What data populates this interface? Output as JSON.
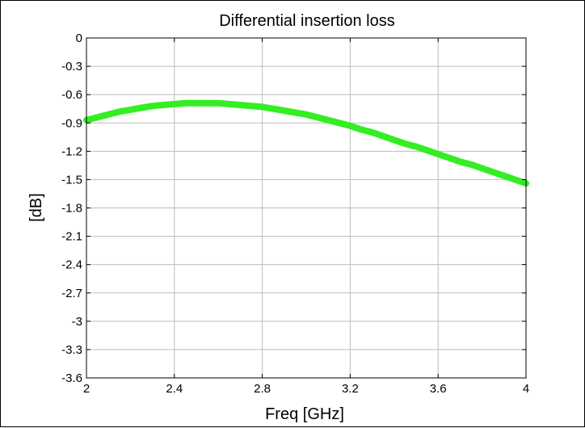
{
  "chart_data": {
    "type": "line",
    "title": "Differential insertion loss",
    "xlabel": "Freq [GHz]",
    "ylabel": "[dB]",
    "xlim": [
      2,
      4
    ],
    "ylim": [
      -3.6,
      0
    ],
    "xticks": [
      2,
      2.4,
      2.8,
      3.2,
      3.6,
      4
    ],
    "xtick_labels": [
      "2",
      "2.4",
      "2.8",
      "3.2",
      "3.6",
      "4"
    ],
    "yticks": [
      0,
      -0.3,
      -0.6,
      -0.9,
      -1.2,
      -1.5,
      -1.8,
      -2.1,
      -2.4,
      -2.7,
      -3,
      -3.3,
      -3.6
    ],
    "ytick_labels": [
      "0",
      "-0.3",
      "-0.6",
      "-0.9",
      "-1.2",
      "-1.5",
      "-1.8",
      "-2.1",
      "-2.4",
      "-2.7",
      "-3",
      "-3.3",
      "-3.6"
    ],
    "grid": true,
    "series": [
      {
        "color": "#33ee22",
        "x": [
          2.0,
          2.05,
          2.1,
          2.15,
          2.2,
          2.25,
          2.3,
          2.35,
          2.4,
          2.45,
          2.5,
          2.55,
          2.6,
          2.65,
          2.7,
          2.75,
          2.8,
          2.85,
          2.9,
          2.95,
          3.0,
          3.05,
          3.1,
          3.15,
          3.2,
          3.25,
          3.3,
          3.35,
          3.4,
          3.45,
          3.5,
          3.55,
          3.6,
          3.65,
          3.7,
          3.75,
          3.8,
          3.85,
          3.9,
          3.95,
          4.0
        ],
        "y": [
          -0.87,
          -0.84,
          -0.81,
          -0.78,
          -0.76,
          -0.74,
          -0.72,
          -0.71,
          -0.7,
          -0.69,
          -0.69,
          -0.69,
          -0.69,
          -0.7,
          -0.71,
          -0.72,
          -0.73,
          -0.75,
          -0.77,
          -0.79,
          -0.81,
          -0.84,
          -0.87,
          -0.9,
          -0.93,
          -0.97,
          -1.0,
          -1.04,
          -1.08,
          -1.12,
          -1.15,
          -1.19,
          -1.23,
          -1.27,
          -1.31,
          -1.34,
          -1.38,
          -1.42,
          -1.46,
          -1.5,
          -1.54
        ]
      }
    ]
  }
}
